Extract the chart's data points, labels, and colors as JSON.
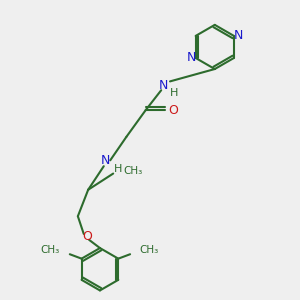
{
  "bg_color": "#efefef",
  "bond_color": "#2d6b2d",
  "n_color": "#1a1acc",
  "o_color": "#cc1a1a",
  "h_color": "#2d6b2d",
  "line_width": 1.5,
  "fig_size": [
    3.0,
    3.0
  ],
  "dpi": 100,
  "xlim": [
    0,
    10
  ],
  "ylim": [
    0,
    10
  ]
}
